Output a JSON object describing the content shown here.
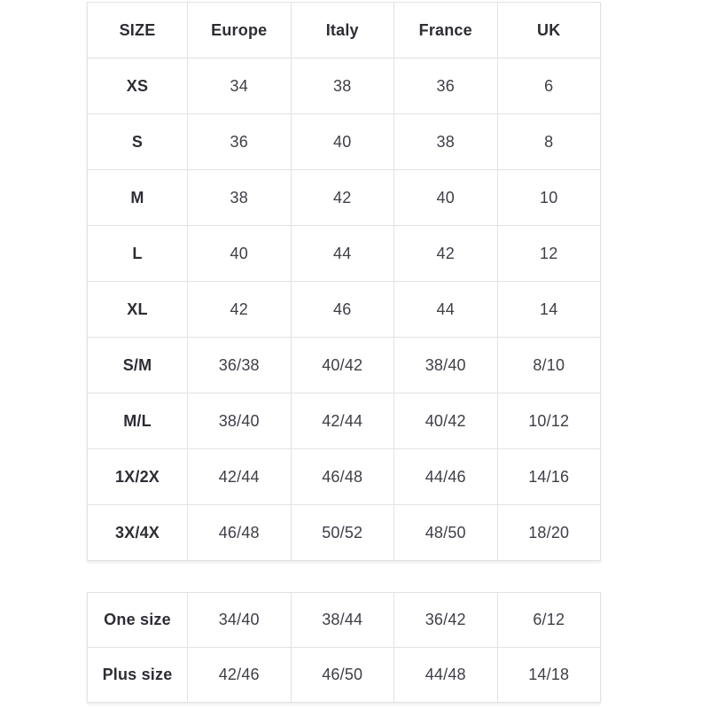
{
  "colors": {
    "background": "#ffffff",
    "border": "#e2e2e2",
    "heading_text": "#2d2d35",
    "value_text": "#3e3e48"
  },
  "table1": {
    "headers": [
      "SIZE",
      "Europe",
      "Italy",
      "France",
      "UK"
    ],
    "rows": [
      {
        "size": "XS",
        "values": [
          "34",
          "38",
          "36",
          "6"
        ]
      },
      {
        "size": "S",
        "values": [
          "36",
          "40",
          "38",
          "8"
        ]
      },
      {
        "size": "M",
        "values": [
          "38",
          "42",
          "40",
          "10"
        ]
      },
      {
        "size": "L",
        "values": [
          "40",
          "44",
          "42",
          "12"
        ]
      },
      {
        "size": "XL",
        "values": [
          "42",
          "46",
          "44",
          "14"
        ]
      },
      {
        "size": "S/M",
        "values": [
          "36/38",
          "40/42",
          "38/40",
          "8/10"
        ]
      },
      {
        "size": "M/L",
        "values": [
          "38/40",
          "42/44",
          "40/42",
          "10/12"
        ]
      },
      {
        "size": "1X/2X",
        "values": [
          "42/44",
          "46/48",
          "44/46",
          "14/16"
        ]
      },
      {
        "size": "3X/4X",
        "values": [
          "46/48",
          "50/52",
          "48/50",
          "18/20"
        ]
      }
    ]
  },
  "table2": {
    "rows": [
      {
        "size": "One size",
        "values": [
          "34/40",
          "38/44",
          "36/42",
          "6/12"
        ]
      },
      {
        "size": "Plus size",
        "values": [
          "42/46",
          "46/50",
          "44/48",
          "14/18"
        ]
      }
    ]
  }
}
